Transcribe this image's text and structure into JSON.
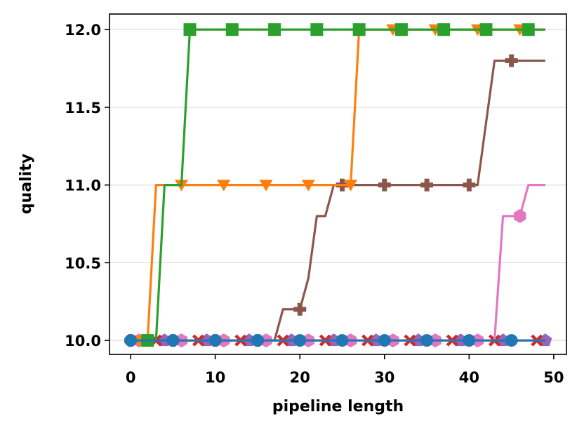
{
  "chart_data": {
    "type": "line",
    "title": "",
    "xlabel": "pipeline length",
    "ylabel": "quality",
    "xlim": [
      -2.5,
      51.5
    ],
    "ylim": [
      9.91,
      12.1
    ],
    "xticks": [
      0,
      10,
      20,
      30,
      40,
      50
    ],
    "yticks": [
      10.0,
      10.5,
      11.0,
      11.5,
      12.0
    ],
    "xtick_labels": [
      "0",
      "10",
      "20",
      "30",
      "40",
      "50"
    ],
    "ytick_labels": [
      "10.0",
      "10.5",
      "11.0",
      "11.5",
      "12.0"
    ],
    "grid": "horizontal",
    "legend": "none",
    "x": [
      0,
      1,
      2,
      3,
      4,
      5,
      6,
      7,
      8,
      9,
      10,
      11,
      12,
      13,
      14,
      15,
      16,
      17,
      18,
      19,
      20,
      21,
      22,
      23,
      24,
      25,
      26,
      27,
      28,
      29,
      30,
      31,
      32,
      33,
      34,
      35,
      36,
      37,
      38,
      39,
      40,
      41,
      42,
      43,
      44,
      45,
      46,
      47,
      48,
      49
    ],
    "series": [
      {
        "color": "#1f77b4",
        "marker": "circle",
        "markevery": 5,
        "markeroffset": 0,
        "z": 7,
        "values": [
          10,
          10,
          10,
          10,
          10,
          10,
          10,
          10,
          10,
          10,
          10,
          10,
          10,
          10,
          10,
          10,
          10,
          10,
          10,
          10,
          10,
          10,
          10,
          10,
          10,
          10,
          10,
          10,
          10,
          10,
          10,
          10,
          10,
          10,
          10,
          10,
          10,
          10,
          10,
          10,
          10,
          10,
          10,
          10,
          10,
          10,
          10,
          10,
          10,
          10
        ]
      },
      {
        "color": "#ff7f0e",
        "marker": "triangle-down",
        "markevery": 5,
        "markeroffset": 1,
        "z": 5,
        "values": [
          10,
          10,
          10,
          11,
          11,
          11,
          11,
          11,
          11,
          11,
          11,
          11,
          11,
          11,
          11,
          11,
          11,
          11,
          11,
          11,
          11,
          11,
          11,
          11,
          11,
          11,
          11,
          12,
          12,
          12,
          12,
          12,
          12,
          12,
          12,
          12,
          12,
          12,
          12,
          12,
          12,
          12,
          12,
          12,
          12,
          12,
          12,
          12,
          12,
          12
        ]
      },
      {
        "color": "#2ca02c",
        "marker": "square",
        "markevery": 5,
        "markeroffset": 2,
        "z": 6,
        "values": [
          10,
          10,
          10,
          10,
          11,
          11,
          11,
          12,
          12,
          12,
          12,
          12,
          12,
          12,
          12,
          12,
          12,
          12,
          12,
          12,
          12,
          12,
          12,
          12,
          12,
          12,
          12,
          12,
          12,
          12,
          12,
          12,
          12,
          12,
          12,
          12,
          12,
          12,
          12,
          12,
          12,
          12,
          12,
          12,
          12,
          12,
          12,
          12,
          12,
          12
        ]
      },
      {
        "color": "#d62728",
        "marker": "x",
        "markevery": 5,
        "markeroffset": 3,
        "z": 2,
        "values": [
          10,
          10,
          10,
          10,
          10,
          10,
          10,
          10,
          10,
          10,
          10,
          10,
          10,
          10,
          10,
          10,
          10,
          10,
          10,
          10,
          10,
          10,
          10,
          10,
          10,
          10,
          10,
          10,
          10,
          10,
          10,
          10,
          10,
          10,
          10,
          10,
          10,
          10,
          10,
          10,
          10,
          10,
          10,
          10,
          10,
          10,
          10,
          10,
          10,
          10
        ]
      },
      {
        "color": "#9467bd",
        "marker": "pentagon",
        "markevery": 5,
        "markeroffset": 4,
        "z": 1,
        "values": [
          10,
          10,
          10,
          10,
          10,
          10,
          10,
          10,
          10,
          10,
          10,
          10,
          10,
          10,
          10,
          10,
          10,
          10,
          10,
          10,
          10,
          10,
          10,
          10,
          10,
          10,
          10,
          10,
          10,
          10,
          10,
          10,
          10,
          10,
          10,
          10,
          10,
          10,
          10,
          10,
          10,
          10,
          10,
          10,
          10,
          10,
          10,
          10,
          10,
          10
        ]
      },
      {
        "color": "#8c564b",
        "marker": "plus-filled",
        "markevery": 5,
        "markeroffset": 0,
        "z": 4,
        "values": [
          10,
          10,
          10,
          10,
          10,
          10,
          10,
          10,
          10,
          10,
          10,
          10,
          10,
          10,
          10,
          10,
          10,
          10,
          10.2,
          10.2,
          10.2,
          10.4,
          10.8,
          10.8,
          11,
          11,
          11,
          11,
          11,
          11,
          11,
          11,
          11,
          11,
          11,
          11,
          11,
          11,
          11,
          11,
          11,
          11,
          11.4,
          11.8,
          11.8,
          11.8,
          11.8,
          11.8,
          11.8,
          11.8
        ]
      },
      {
        "color": "#e377c2",
        "marker": "hexagon",
        "markevery": 5,
        "markeroffset": 1,
        "z": 3,
        "values": [
          10,
          10,
          10,
          10,
          10,
          10,
          10,
          10,
          10,
          10,
          10,
          10,
          10,
          10,
          10,
          10,
          10,
          10,
          10,
          10,
          10,
          10,
          10,
          10,
          10,
          10,
          10,
          10,
          10,
          10,
          10,
          10,
          10,
          10,
          10,
          10,
          10,
          10,
          10,
          10,
          10,
          10,
          10,
          10,
          10.8,
          10.8,
          10.8,
          11,
          11,
          11
        ]
      }
    ]
  }
}
